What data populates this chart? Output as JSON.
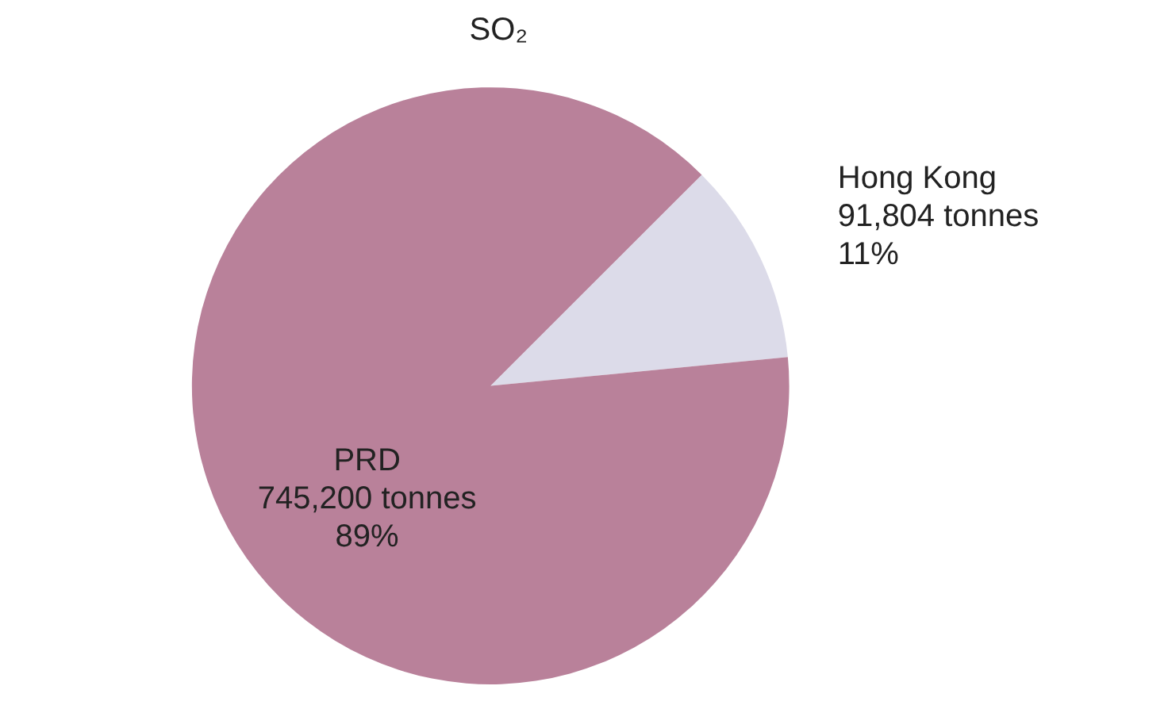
{
  "chart_data": {
    "type": "pie",
    "title": "SO₂",
    "categories": [
      "Hong Kong",
      "PRD"
    ],
    "values": [
      91804,
      745200
    ],
    "value_labels": [
      "91,804 tonnes\n11%",
      "745,200 tonnes\n89%"
    ],
    "colors": [
      "#dcdbe9",
      "#b9819a"
    ]
  }
}
